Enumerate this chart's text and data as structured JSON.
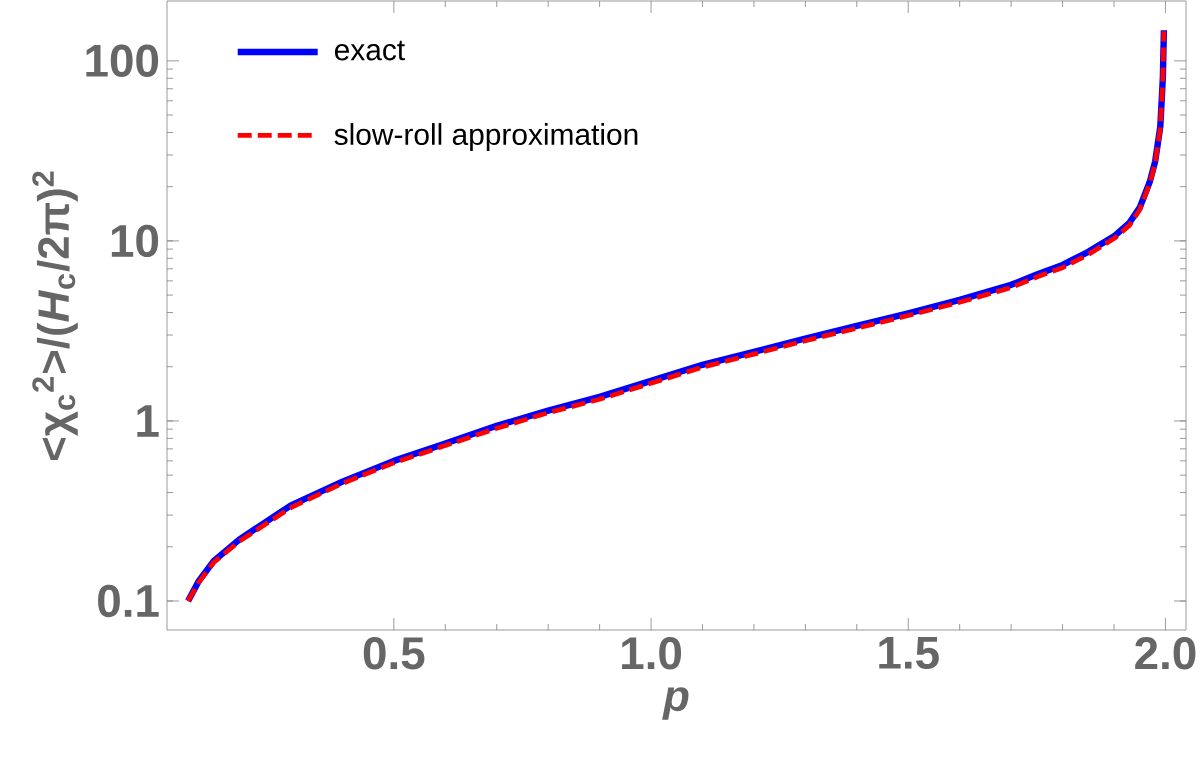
{
  "chart_data": {
    "type": "line",
    "xlabel": "p",
    "ylabel": "<χ$_{c}$$^{2}$>/(*H*$_{c}$/2π)$^{2}$",
    "x": [
      0.1,
      0.12,
      0.15,
      0.2,
      0.3,
      0.4,
      0.5,
      0.6,
      0.7,
      0.8,
      0.9,
      1.0,
      1.1,
      1.2,
      1.3,
      1.4,
      1.5,
      1.6,
      1.7,
      1.75,
      1.8,
      1.85,
      1.9,
      1.93,
      1.95,
      1.97,
      1.98,
      1.99,
      1.995,
      1.997
    ],
    "series": [
      {
        "name": "exact",
        "color": "#0000ff",
        "line_style": "solid",
        "values": [
          0.1,
          0.128,
          0.167,
          0.22,
          0.34,
          0.46,
          0.6,
          0.75,
          0.94,
          1.14,
          1.36,
          1.67,
          2.05,
          2.42,
          2.87,
          3.37,
          3.96,
          4.7,
          5.7,
          6.5,
          7.35,
          8.7,
          10.6,
          12.6,
          15.3,
          21.5,
          27.6,
          43,
          81,
          148
        ]
      },
      {
        "name": "slow-roll approximation",
        "color": "#ff0000",
        "line_style": "dashed",
        "values": [
          0.1,
          0.126,
          0.164,
          0.215,
          0.33,
          0.45,
          0.585,
          0.73,
          0.91,
          1.11,
          1.32,
          1.62,
          1.99,
          2.35,
          2.79,
          3.27,
          3.85,
          4.56,
          5.5,
          6.3,
          7.1,
          8.4,
          10.3,
          12.2,
          14.9,
          21,
          27,
          42,
          80,
          146
        ]
      }
    ],
    "xlim": [
      0.059,
      2.04
    ],
    "ylim": [
      0.069,
      215
    ],
    "xticks": [
      0.5,
      {
        "value": 1.0,
        "label": "1.0"
      },
      1.5,
      {
        "value": 2.0,
        "label": "2.0"
      }
    ],
    "yticks": [
      0.1,
      1,
      10,
      100
    ],
    "log": "y",
    "legend": "top left",
    "grid": false,
    "marker": "none"
  }
}
